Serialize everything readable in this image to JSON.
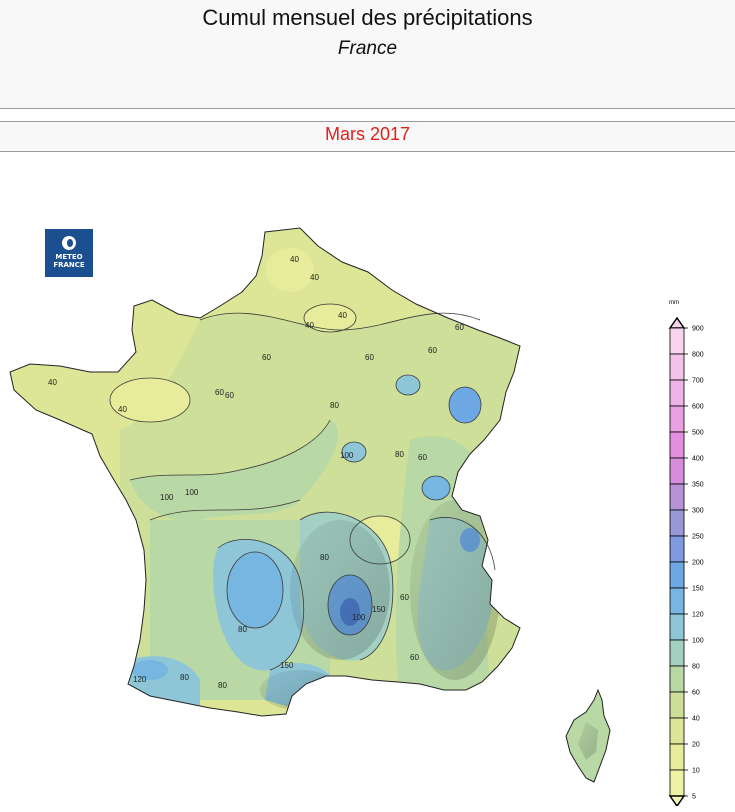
{
  "header": {
    "title": "Cumul mensuel des précipitations",
    "subtitle": "France",
    "period": "Mars 2017"
  },
  "logo": {
    "line1": "METEO",
    "line2": "FRANCE",
    "icon": "meteo-france-logo-icon"
  },
  "legend": {
    "unit": "mm",
    "levels": [
      "900",
      "800",
      "700",
      "600",
      "500",
      "400",
      "350",
      "300",
      "250",
      "200",
      "150",
      "120",
      "100",
      "80",
      "60",
      "40",
      "20",
      "10",
      "5"
    ],
    "colors": [
      "#f8d4ee",
      "#f2c2ea",
      "#eeb2e6",
      "#e9a0e2",
      "#e38ede",
      "#d88cdc",
      "#b892d8",
      "#9898d6",
      "#7f9ae0",
      "#6ea8e4",
      "#78b6e2",
      "#8ec6d8",
      "#a4d0c4",
      "#b8d8a6",
      "#cddf98",
      "#dde696",
      "#e6ec9a",
      "#eef2a4",
      "#f3f4b6"
    ]
  },
  "map": {
    "contour_labels": [
      "40",
      "40",
      "40",
      "60",
      "60",
      "60",
      "60",
      "80",
      "80",
      "100",
      "100",
      "100",
      "150",
      "150",
      "120",
      "60",
      "80",
      "100",
      "80",
      "80",
      "40",
      "60",
      "40",
      "60",
      "80",
      "60",
      "40",
      "60"
    ]
  }
}
